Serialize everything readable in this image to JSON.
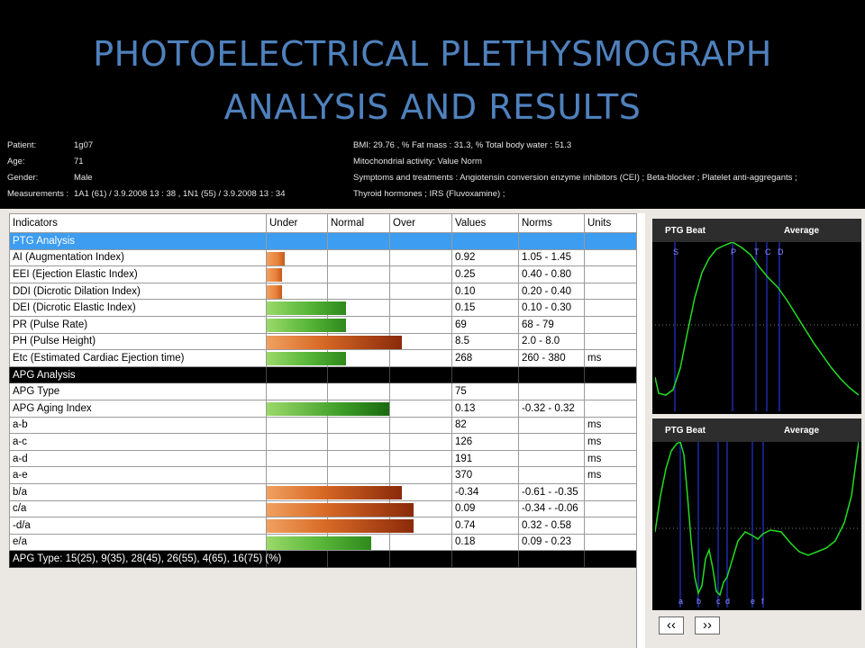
{
  "title": {
    "line1": "PHOTOELECTRICAL PLETHYSMOGRAPH",
    "line2": "ANALYSIS AND RESULTS"
  },
  "patient": {
    "patient_label": "Patient:",
    "patient_value": "1g07",
    "age_label": "Age:",
    "age_value": "71",
    "gender_label": "Gender:",
    "gender_value": "Male",
    "measurements_label": "Measurements :",
    "measurements_value": "1A1  (61)  / 3.9.2008  13 : 38  , 1N1  (55)  / 3.9.2008  13 : 34",
    "bmi": "BMI:    29.76  ,  % Fat mass : 31.3,  % Total body water  : 51.3",
    "mito": "Mitochondrial activity: Value Norm",
    "symptoms": "Symptoms and treatments : Angiotensin conversion enzyme inhibitors (CEI) ; Beta-blocker ; Platelet anti-aggregants ;",
    "thyroid": "Thyroid hormones ; IRS (Fluvoxamine) ;"
  },
  "table": {
    "headers": [
      "Indicators",
      "Under",
      "Normal",
      "Over",
      "Values",
      "Norms",
      "Units"
    ],
    "rows": [
      {
        "indicator": "PTG Analysis",
        "value": "",
        "norm": "",
        "unit": ""
      },
      {
        "indicator": "AI (Augmentation Index)",
        "value": "0.92",
        "norm": "1.05 - 1.45",
        "unit": ""
      },
      {
        "indicator": "EEI (Ejection Elastic Index)",
        "value": "0.25",
        "norm": "0.40 - 0.80",
        "unit": ""
      },
      {
        "indicator": "DDI (Dicrotic Dilation Index)",
        "value": "0.10",
        "norm": "0.20 - 0.40",
        "unit": ""
      },
      {
        "indicator": "DEI (Dicrotic Elastic Index)",
        "value": "0.15",
        "norm": "0.10 - 0.30",
        "unit": ""
      },
      {
        "indicator": "PR (Pulse Rate)",
        "value": "69",
        "norm": "68 - 79",
        "unit": ""
      },
      {
        "indicator": "PH (Pulse Height)",
        "value": "8.5",
        "norm": "2.0 - 8.0",
        "unit": ""
      },
      {
        "indicator": "Etc (Estimated Cardiac Ejection time)",
        "value": "268",
        "norm": "260 - 380",
        "unit": "ms"
      },
      {
        "indicator": "APG Analysis",
        "value": "",
        "norm": "",
        "unit": ""
      },
      {
        "indicator": "APG Type",
        "value": "75",
        "norm": "",
        "unit": ""
      },
      {
        "indicator": "APG Aging Index",
        "value": "0.13",
        "norm": "-0.32 - 0.32",
        "unit": ""
      },
      {
        "indicator": "a-b",
        "value": "82",
        "norm": "",
        "unit": "ms"
      },
      {
        "indicator": "a-c",
        "value": "126",
        "norm": "",
        "unit": "ms"
      },
      {
        "indicator": "a-d",
        "value": "191",
        "norm": "",
        "unit": "ms"
      },
      {
        "indicator": "a-e",
        "value": "370",
        "norm": "",
        "unit": "ms"
      },
      {
        "indicator": "b/a",
        "value": "-0.34",
        "norm": "-0.61 - -0.35",
        "unit": ""
      },
      {
        "indicator": "c/a",
        "value": "0.09",
        "norm": "-0.34 - -0.06",
        "unit": ""
      },
      {
        "indicator": "-d/a",
        "value": "0.74",
        "norm": "0.32 - 0.58",
        "unit": ""
      },
      {
        "indicator": "e/a",
        "value": "0.18",
        "norm": "0.09 - 0.23",
        "unit": ""
      },
      {
        "indicator": "APG Type: 15(25), 9(35), 28(45), 26(55), 4(65), 16(75) (%)",
        "value": "",
        "norm": "",
        "unit": ""
      }
    ],
    "bar_levels": {
      "ai": 0.3,
      "eei": 0.25,
      "ddi": 0.25,
      "dei": 1.3,
      "pr": 1.3,
      "ph": 2.2,
      "etc": 1.3,
      "aging": 2.0,
      "ba": 2.2,
      "ca": 2.4,
      "da": 2.4,
      "ea": 1.7
    },
    "bar_colors": {
      "under": "#e8823a",
      "over": "#8a2a0a",
      "normal": "#5ab83a"
    }
  },
  "graphs": {
    "top": {
      "title": "PTG Beat",
      "mode": "Average",
      "markers": [
        "S",
        "P",
        "T",
        "C",
        "D"
      ]
    },
    "bottom": {
      "title": "PTG Beat",
      "mode": "Average",
      "markers": [
        "a",
        "b",
        "c",
        "d",
        "e",
        "f"
      ]
    },
    "line_color": "#22dd22"
  },
  "nav": {
    "prev": "‹‹",
    "next": "››"
  }
}
